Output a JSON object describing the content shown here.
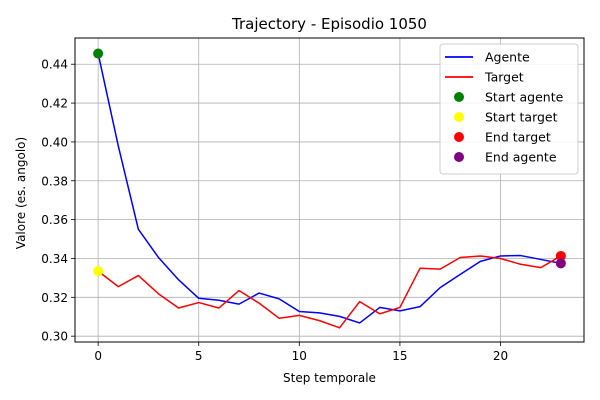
{
  "chart_data": {
    "type": "line",
    "title": "Trajectory - Episodio 1050",
    "xlabel": "Step temporale",
    "ylabel": "Valore (es. angolo)",
    "xlim": [
      -1.15,
      24.15
    ],
    "ylim": [
      0.297,
      0.4535
    ],
    "xticks": [
      0,
      5,
      10,
      15,
      20
    ],
    "yticks": [
      0.3,
      0.32,
      0.34,
      0.36,
      0.38,
      0.4,
      0.42,
      0.44
    ],
    "ytick_labels": [
      "0.30",
      "0.32",
      "0.34",
      "0.36",
      "0.38",
      "0.40",
      "0.42",
      "0.44"
    ],
    "grid": true,
    "legend_position": "top-right",
    "x": [
      0,
      1,
      2,
      3,
      4,
      5,
      6,
      7,
      8,
      9,
      10,
      11,
      12,
      13,
      14,
      15,
      16,
      17,
      18,
      19,
      20,
      21,
      22,
      23
    ],
    "series": [
      {
        "name": "Agente",
        "color": "#0000ff",
        "values": [
          0.4455,
          0.398,
          0.355,
          0.3405,
          0.329,
          0.3195,
          0.3185,
          0.3165,
          0.3222,
          0.3192,
          0.3127,
          0.312,
          0.3102,
          0.3068,
          0.3148,
          0.313,
          0.3152,
          0.325,
          0.3318,
          0.3385,
          0.3413,
          0.3415,
          0.3395,
          0.3375
        ]
      },
      {
        "name": "Target",
        "color": "#ff0000",
        "values": [
          0.3335,
          0.3255,
          0.3312,
          0.3218,
          0.3145,
          0.3173,
          0.3145,
          0.3235,
          0.317,
          0.3092,
          0.3107,
          0.308,
          0.3043,
          0.3178,
          0.3115,
          0.3148,
          0.335,
          0.3345,
          0.3405,
          0.3413,
          0.34,
          0.337,
          0.3353,
          0.3413
        ]
      }
    ],
    "markers": [
      {
        "name": "Start agente",
        "color": "#008000",
        "x": 0,
        "y": 0.4455
      },
      {
        "name": "Start target",
        "color": "#ffff00",
        "x": 0,
        "y": 0.3335
      },
      {
        "name": "End target",
        "color": "#ff0000",
        "x": 23,
        "y": 0.3413
      },
      {
        "name": "End agente",
        "color": "#800080",
        "x": 23,
        "y": 0.3375
      }
    ]
  }
}
